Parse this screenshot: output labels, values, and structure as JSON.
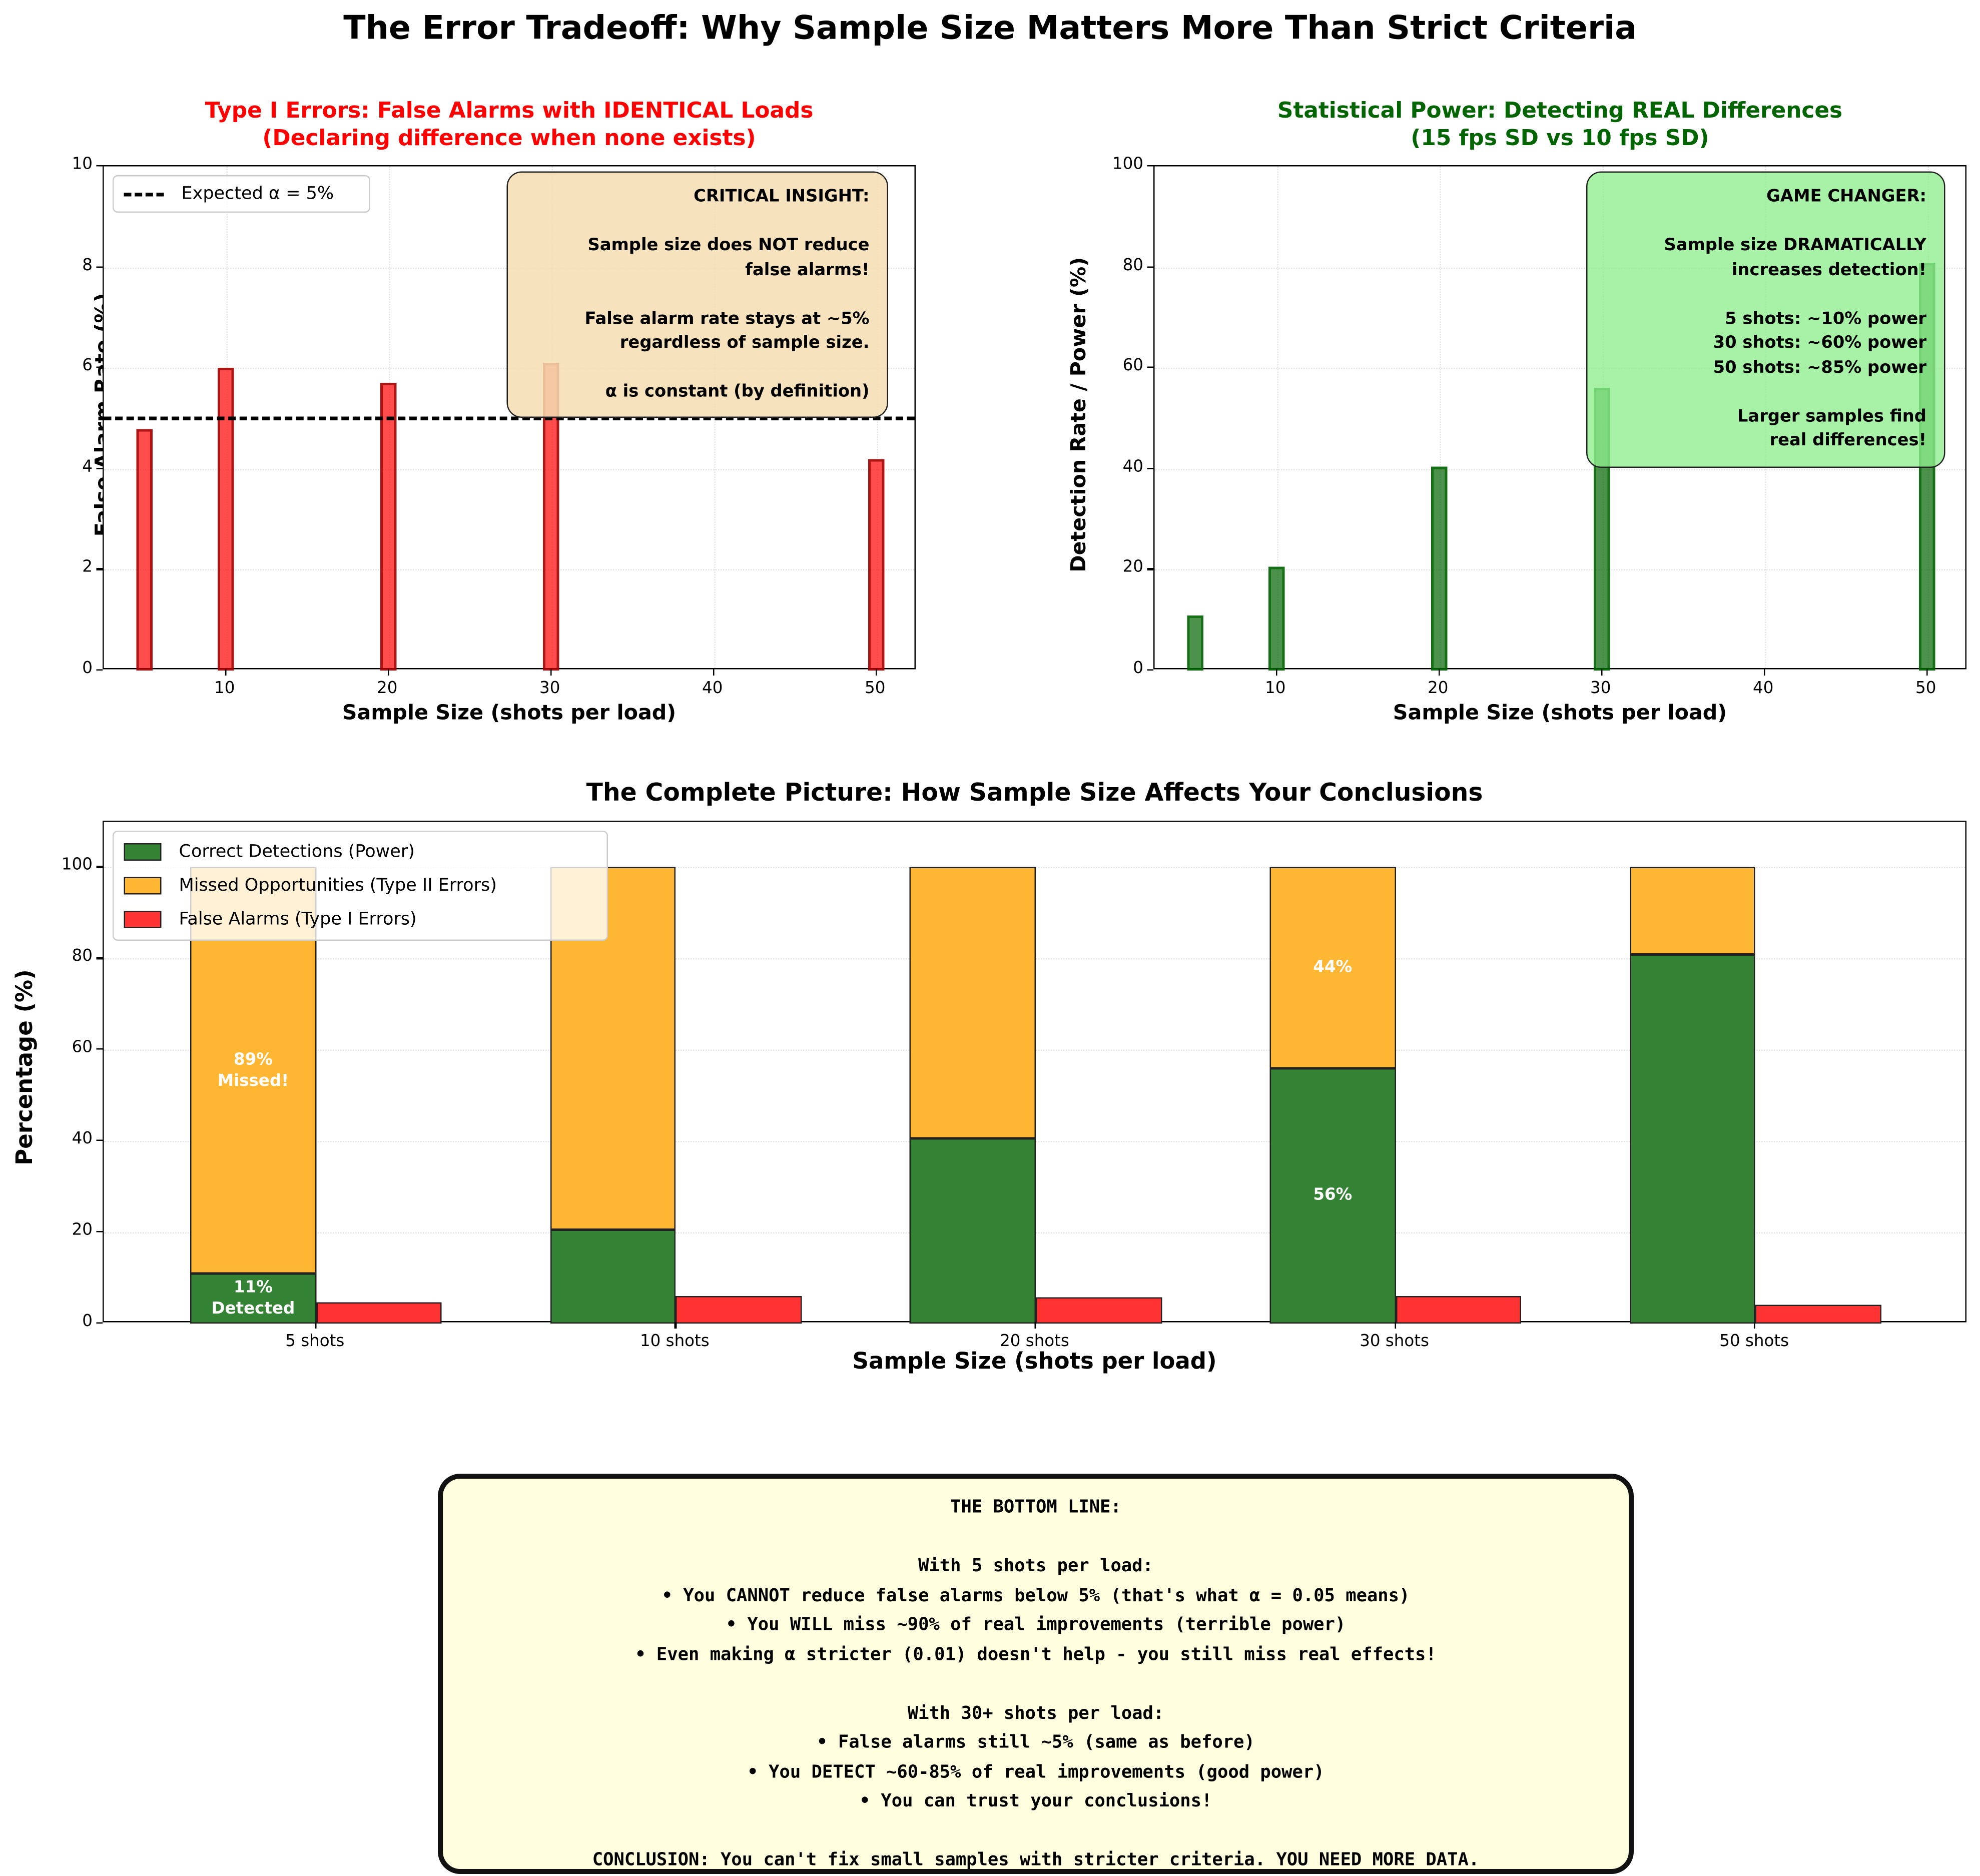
{
  "figure": {
    "suptitle": "The Error Tradeoff: Why Sample Size Matters More Than Strict Criteria"
  },
  "colors": {
    "type1_red": "#ff3333",
    "power_green": "#348234",
    "type2_orange": "#ffb733",
    "title_red": "#ff0000",
    "title_green": "#006400",
    "insight_box": "#f5deb3",
    "game_box": "#90ee90",
    "bottom_box": "#ffffe0"
  },
  "chart_data": [
    {
      "type": "bar",
      "title": "Type I Errors: False Alarms with IDENTICAL Loads\n(Declaring difference when none exists)",
      "title_line1": "Type I Errors: False Alarms with IDENTICAL Loads",
      "title_line2": "(Declaring difference when none exists)",
      "xlabel": "Sample Size (shots per load)",
      "ylabel": "False Alarm Rate (%)",
      "x": [
        5,
        10,
        20,
        30,
        50
      ],
      "values": [
        4.8,
        6.0,
        5.7,
        6.1,
        4.2
      ],
      "xlim": [
        2.5,
        52.5
      ],
      "ylim": [
        0,
        10
      ],
      "xticks": [
        "10",
        "20",
        "30",
        "40",
        "50"
      ],
      "yticks": [
        "0",
        "2",
        "4",
        "6",
        "8",
        "10"
      ],
      "reference_line": {
        "y": 5,
        "label": "Expected α = 5%",
        "style": "dashed"
      },
      "legend_position": "upper left",
      "grid": true,
      "annotation": {
        "heading": "CRITICAL INSIGHT:",
        "text": "CRITICAL INSIGHT:\n\nSample size does NOT reduce\nfalse alarms!\n\nFalse alarm rate stays at ~5%\nregardless of sample size.\n\nα is constant (by definition)"
      }
    },
    {
      "type": "bar",
      "title": "Statistical Power: Detecting REAL Differences\n(15 fps SD vs 10 fps SD)",
      "title_line1": "Statistical Power: Detecting REAL Differences",
      "title_line2": "(15 fps SD vs 10 fps SD)",
      "xlabel": "Sample Size (shots per load)",
      "ylabel": "Detection Rate / Power (%)",
      "x": [
        5,
        10,
        20,
        30,
        50
      ],
      "values": [
        11,
        20.7,
        40.5,
        56,
        81
      ],
      "xlim": [
        2.5,
        52.5
      ],
      "ylim": [
        0,
        100
      ],
      "xticks": [
        "10",
        "20",
        "30",
        "40",
        "50"
      ],
      "yticks": [
        "0",
        "20",
        "40",
        "60",
        "80",
        "100"
      ],
      "grid": true,
      "annotation": {
        "heading": "GAME CHANGER:",
        "text": "GAME CHANGER:\n\nSample size DRAMATICALLY\nincreases detection!\n\n5 shots: ~10% power\n30 shots: ~60% power\n50 shots: ~85% power\n\nLarger samples find\nreal differences!"
      }
    },
    {
      "type": "bar",
      "subtype": "stacked + grouped",
      "title": "The Complete Picture: How Sample Size Affects Your Conclusions",
      "xlabel": "Sample Size (shots per load)",
      "ylabel": "Percentage (%)",
      "categories": [
        "5 shots",
        "10 shots",
        "20 shots",
        "30 shots",
        "50 shots"
      ],
      "ylim": [
        0,
        110
      ],
      "yticks": [
        "0",
        "20",
        "40",
        "60",
        "80",
        "100"
      ],
      "legend_position": "upper left",
      "grid": true,
      "series": [
        {
          "name": "Correct Detections (Power)",
          "values": [
            11,
            20.7,
            40.5,
            56,
            81
          ],
          "stack": "A"
        },
        {
          "name": "Missed Opportunities (Type II Errors)",
          "values": [
            89,
            79.3,
            59.5,
            44,
            19
          ],
          "stack": "A"
        },
        {
          "name": "False Alarms (Type I Errors)",
          "values": [
            4.8,
            6.0,
            5.7,
            6.1,
            4.2
          ],
          "stack": "B"
        }
      ],
      "bar_labels": [
        {
          "category": "5 shots",
          "series": "Correct Detections (Power)",
          "text": "11%\nDetected"
        },
        {
          "category": "5 shots",
          "series": "Missed Opportunities (Type II Errors)",
          "text": "89%\nMissed!"
        },
        {
          "category": "30 shots",
          "series": "Correct Detections (Power)",
          "text": "56%"
        },
        {
          "category": "30 shots",
          "series": "Missed Opportunities (Type II Errors)",
          "text": "44%"
        }
      ]
    }
  ],
  "bottom_line": {
    "text": "THE BOTTOM LINE:\n\nWith 5 shots per load:\n• You CANNOT reduce false alarms below 5% (that's what α = 0.05 means)\n• You WILL miss ~90% of real improvements (terrible power)\n• Even making α stricter (0.01) doesn't help - you still miss real effects!\n\nWith 30+ shots per load:\n• False alarms still ~5% (same as before)\n• You DETECT ~60-85% of real improvements (good power)\n• You can trust your conclusions!\n\nCONCLUSION: You can't fix small samples with stricter criteria. YOU NEED MORE DATA."
  }
}
